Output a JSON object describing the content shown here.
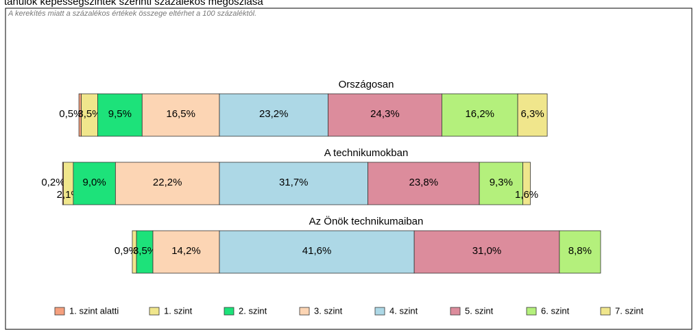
{
  "chart_data": {
    "type": "diverging_bar",
    "title": "tanulók képességszintek szerinti százalékos megoszlása",
    "note": "A kerekítés miatt a  százalékos értékek összege eltérhet a 100 százaléktól.",
    "categories": [
      "Országosan",
      "A technikumokban",
      "Az Önök technikumaiban"
    ],
    "split_after_series": 3,
    "series": [
      {
        "name": "1. szint alatti",
        "color": "#f5a07e",
        "values": [
          0.5,
          0.2,
          null
        ],
        "value_labels": [
          "0,5%",
          "0,2%",
          null
        ]
      },
      {
        "name": "1. szint",
        "color": "#f0e68c",
        "values": [
          3.5,
          2.1,
          0.9
        ],
        "value_labels": [
          "3,5%",
          "2,1%",
          "0,9%"
        ]
      },
      {
        "name": "2. szint",
        "color": "#1de27a",
        "values": [
          9.5,
          9.0,
          3.5
        ],
        "value_labels": [
          "9,5%",
          "9,0%",
          "3,5%"
        ]
      },
      {
        "name": "3. szint",
        "color": "#fcd5b4",
        "values": [
          16.5,
          22.2,
          14.2
        ],
        "value_labels": [
          "16,5%",
          "22,2%",
          "14,2%"
        ]
      },
      {
        "name": "4. szint",
        "color": "#add8e6",
        "values": [
          23.2,
          31.7,
          41.6
        ],
        "value_labels": [
          "23,2%",
          "31,7%",
          "41,6%"
        ]
      },
      {
        "name": "5. szint",
        "color": "#dc8c9c",
        "values": [
          24.3,
          23.8,
          31.0
        ],
        "value_labels": [
          "24,3%",
          "23,8%",
          "31,0%"
        ]
      },
      {
        "name": "6. szint",
        "color": "#b4f07c",
        "values": [
          16.2,
          9.3,
          8.8
        ],
        "value_labels": [
          "16,2%",
          "9,3%",
          "8,8%"
        ]
      },
      {
        "name": "7. szint",
        "color": "#f0e68c",
        "values": [
          6.3,
          1.6,
          null
        ],
        "value_labels": [
          "6,3%",
          "1,6%",
          null
        ]
      }
    ]
  }
}
